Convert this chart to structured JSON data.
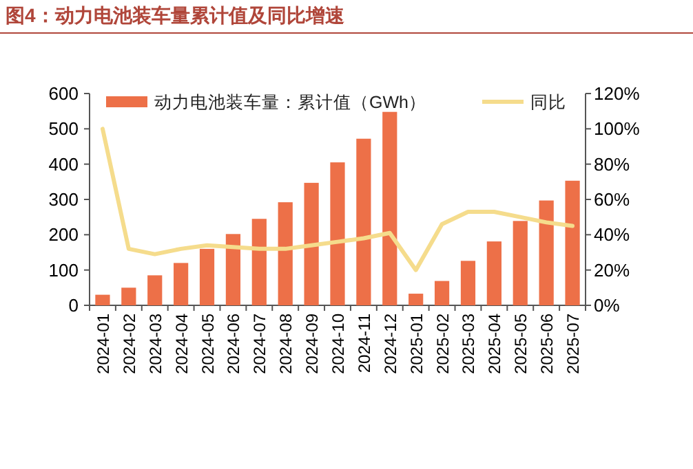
{
  "chart_data": {
    "type": "bar",
    "title": "图4：动力电池装车量累计值及同比增速",
    "categories": [
      "2024-01",
      "2024-02",
      "2024-03",
      "2024-04",
      "2024-05",
      "2024-06",
      "2024-07",
      "2024-08",
      "2024-09",
      "2024-10",
      "2024-11",
      "2024-12",
      "2025-01",
      "2025-02",
      "2025-03",
      "2025-04",
      "2025-05",
      "2025-06",
      "2025-07"
    ],
    "series": [
      {
        "name": "动力电池装车量：累计值（GWh）",
        "color": "#ed7048",
        "values": [
          30,
          50,
          85,
          120,
          160,
          202,
          245,
          292,
          347,
          405,
          472,
          548,
          33,
          69,
          126,
          181,
          239,
          297,
          353
        ]
      },
      {
        "name": "同比",
        "type": "line",
        "axis": "y2",
        "color": "#f5dc8c",
        "values": [
          100,
          32,
          29,
          32,
          34,
          33,
          32,
          32,
          34,
          36,
          38,
          41,
          20,
          46,
          53,
          53,
          50,
          47,
          45
        ]
      }
    ],
    "ylim": [
      0,
      600
    ],
    "yticks": [
      0,
      100,
      200,
      300,
      400,
      500,
      600
    ],
    "y2lim": [
      0,
      120
    ],
    "y2ticks": [
      {
        "value": 0,
        "label": "0%"
      },
      {
        "value": 20,
        "label": "20%"
      },
      {
        "value": 40,
        "label": "40%"
      },
      {
        "value": 60,
        "label": "60%"
      },
      {
        "value": 80,
        "label": "80%"
      },
      {
        "value": 100,
        "label": "100%"
      },
      {
        "value": 120,
        "label": "120%"
      }
    ],
    "legend": "top",
    "grid": false
  }
}
